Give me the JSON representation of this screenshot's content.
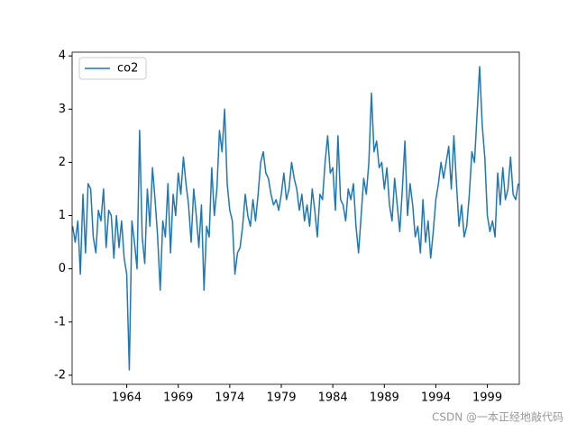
{
  "chart_data": {
    "type": "line",
    "x": [
      1958.75,
      1959,
      1959.25,
      1959.5,
      1959.75,
      1960,
      1960.25,
      1960.5,
      1960.75,
      1961,
      1961.25,
      1961.5,
      1961.75,
      1962,
      1962.25,
      1962.5,
      1962.75,
      1963,
      1963.25,
      1963.5,
      1963.75,
      1964,
      1964.25,
      1964.5,
      1964.75,
      1965,
      1965.25,
      1965.5,
      1965.75,
      1966,
      1966.25,
      1966.5,
      1966.75,
      1967,
      1967.25,
      1967.5,
      1967.75,
      1968,
      1968.25,
      1968.5,
      1968.75,
      1969,
      1969.25,
      1969.5,
      1969.75,
      1970,
      1970.25,
      1970.5,
      1970.75,
      1971,
      1971.25,
      1971.5,
      1971.75,
      1972,
      1972.25,
      1972.5,
      1972.75,
      1973,
      1973.25,
      1973.5,
      1973.75,
      1974,
      1974.25,
      1974.5,
      1974.75,
      1975,
      1975.25,
      1975.5,
      1975.75,
      1976,
      1976.25,
      1976.5,
      1976.75,
      1977,
      1977.25,
      1977.5,
      1977.75,
      1978,
      1978.25,
      1978.5,
      1978.75,
      1979,
      1979.25,
      1979.5,
      1979.75,
      1980,
      1980.25,
      1980.5,
      1980.75,
      1981,
      1981.25,
      1981.5,
      1981.75,
      1982,
      1982.25,
      1982.5,
      1982.75,
      1983,
      1983.25,
      1983.5,
      1983.75,
      1984,
      1984.25,
      1984.5,
      1984.75,
      1985,
      1985.25,
      1985.5,
      1985.75,
      1986,
      1986.25,
      1986.5,
      1986.75,
      1987,
      1987.25,
      1987.5,
      1987.75,
      1988,
      1988.25,
      1988.5,
      1988.75,
      1989,
      1989.25,
      1989.5,
      1989.75,
      1990,
      1990.25,
      1990.5,
      1990.75,
      1991,
      1991.25,
      1991.5,
      1991.75,
      1992,
      1992.25,
      1992.5,
      1992.75,
      1993,
      1993.25,
      1993.5,
      1993.75,
      1994,
      1994.25,
      1994.5,
      1994.75,
      1995,
      1995.25,
      1995.5,
      1995.75,
      1996,
      1996.25,
      1996.5,
      1996.75,
      1997,
      1997.25,
      1997.5,
      1997.75,
      1998,
      1998.25,
      1998.5,
      1998.75,
      1999,
      1999.25,
      1999.5,
      1999.75,
      2000,
      2000.25,
      2000.5,
      2000.75,
      2001,
      2001.25,
      2001.5,
      2001.75,
      2002
    ],
    "series": [
      {
        "name": "co2",
        "color": "#1f77b4",
        "values": [
          0.8,
          0.5,
          0.9,
          -0.1,
          1.4,
          0.3,
          1.6,
          1.5,
          0.6,
          0.3,
          1.1,
          0.9,
          1.5,
          0.4,
          1.1,
          1.0,
          0.2,
          1.0,
          0.4,
          0.9,
          0.2,
          -0.1,
          -1.9,
          0.9,
          0.5,
          0.0,
          2.6,
          0.6,
          0.1,
          1.5,
          0.8,
          1.9,
          1.3,
          0.6,
          -0.4,
          0.9,
          0.6,
          1.6,
          0.3,
          1.4,
          1.0,
          1.8,
          1.4,
          2.1,
          1.6,
          1.2,
          0.5,
          1.5,
          1.0,
          0.4,
          1.2,
          -0.4,
          0.8,
          0.6,
          1.9,
          1.0,
          1.5,
          2.6,
          2.2,
          3.0,
          1.6,
          1.1,
          0.9,
          -0.1,
          0.3,
          0.4,
          0.8,
          1.4,
          1.0,
          0.8,
          1.3,
          0.9,
          1.4,
          2.0,
          2.2,
          1.8,
          1.7,
          1.4,
          1.2,
          1.3,
          1.1,
          1.4,
          1.8,
          1.3,
          1.5,
          2.0,
          1.7,
          1.5,
          1.1,
          1.4,
          0.9,
          1.2,
          0.8,
          1.5,
          1.1,
          0.6,
          1.4,
          1.3,
          2.0,
          2.5,
          1.8,
          1.9,
          1.1,
          2.5,
          1.3,
          1.2,
          0.9,
          1.5,
          1.3,
          1.6,
          0.8,
          0.3,
          1.0,
          1.7,
          1.4,
          2.0,
          3.3,
          2.2,
          2.4,
          1.9,
          2.0,
          1.5,
          1.9,
          1.2,
          0.9,
          1.7,
          1.2,
          0.7,
          1.5,
          2.4,
          1.0,
          1.6,
          1.2,
          0.6,
          0.8,
          0.3,
          1.3,
          0.5,
          0.9,
          0.2,
          0.7,
          1.3,
          1.6,
          2.0,
          1.7,
          2.0,
          2.3,
          1.5,
          2.5,
          1.6,
          0.8,
          1.2,
          0.6,
          0.8,
          1.4,
          2.2,
          2.0,
          2.9,
          3.8,
          2.7,
          2.1,
          1.0,
          0.7,
          0.9,
          0.6,
          1.8,
          1.2,
          1.9,
          1.3,
          1.5,
          2.1,
          1.4,
          1.3,
          1.6
        ]
      }
    ],
    "xlim": [
      1958.7,
      2002.1
    ],
    "xticks": [
      1964,
      1969,
      1974,
      1979,
      1984,
      1989,
      1994,
      1999
    ],
    "ylim": [
      -2.17,
      4.07
    ],
    "yticks": [
      -2,
      -1,
      0,
      1,
      2,
      3,
      4
    ],
    "legend": "upper left",
    "grid": false
  },
  "watermark": "CSDN @一本正经地敲代码"
}
